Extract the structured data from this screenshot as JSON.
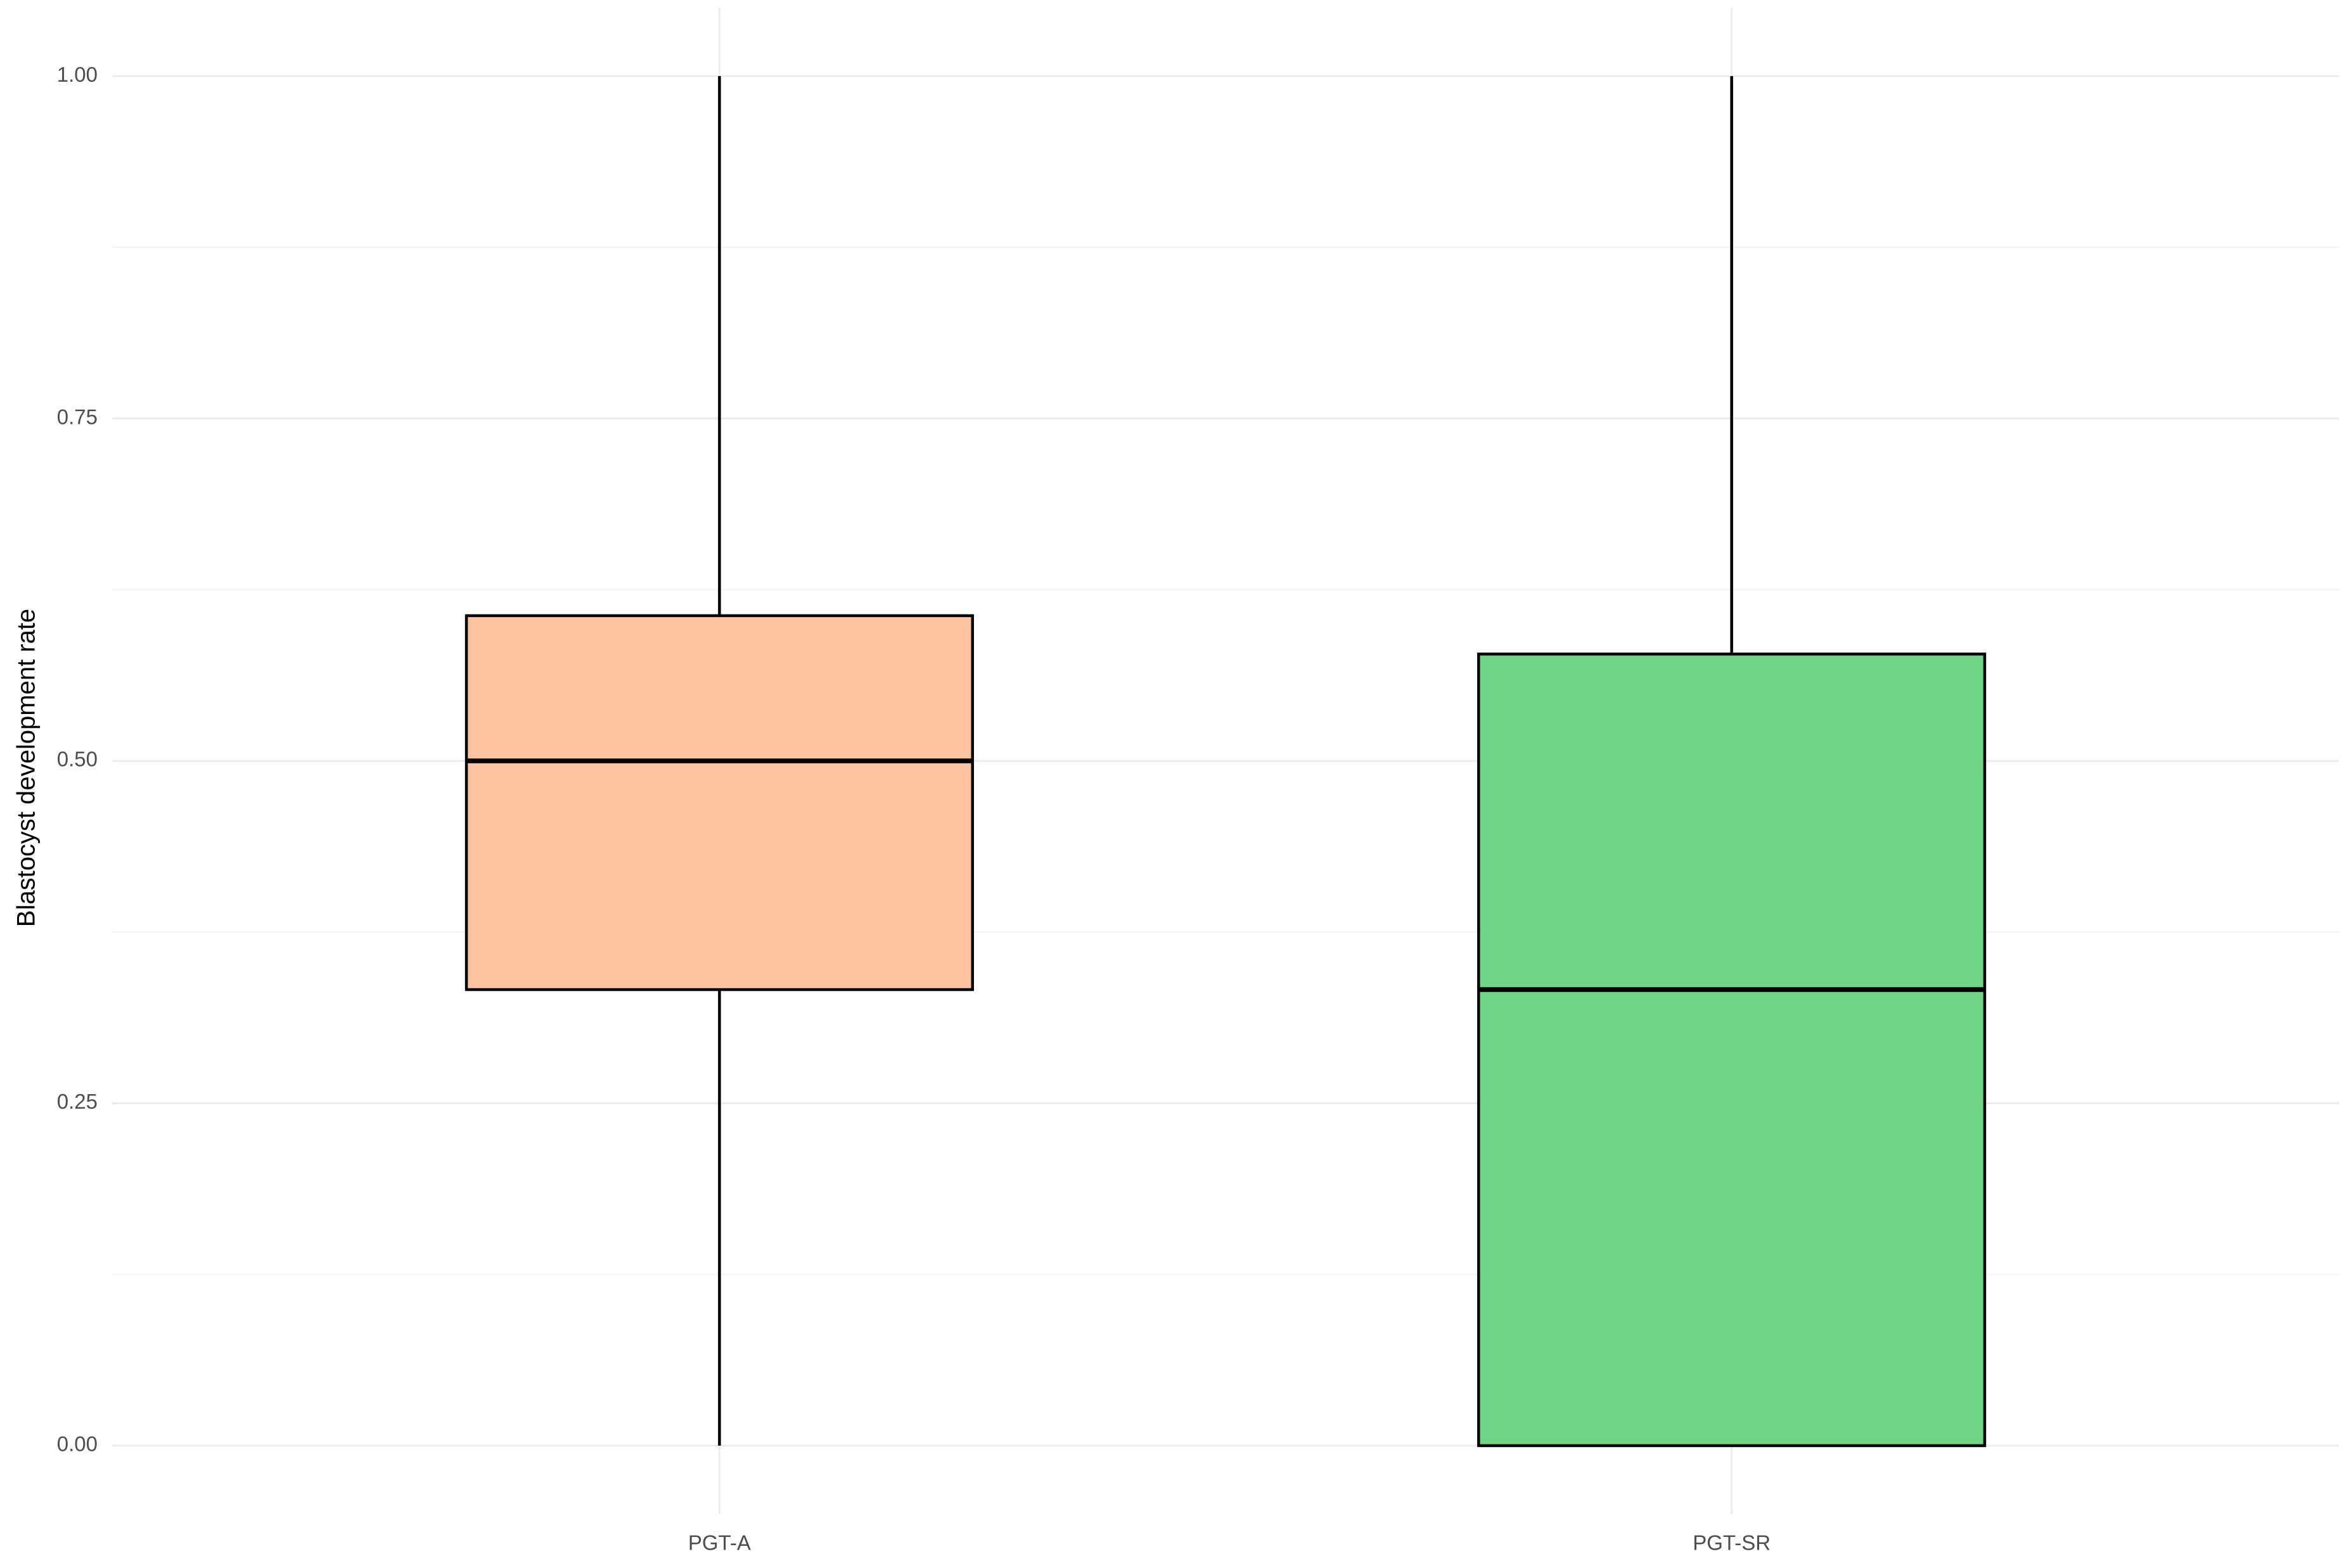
{
  "chart_data": {
    "type": "boxplot",
    "y_label": "Blastocyst development rate",
    "categories": [
      "PGT-A",
      "PGT-SR"
    ],
    "boxes": [
      {
        "min": 0,
        "q1": 0.333,
        "median": 0.5,
        "q3": 0.606,
        "max": 1,
        "color": "#fdc3a0"
      },
      {
        "min": 0,
        "q1": 0,
        "median": 0.333,
        "q3": 0.578,
        "max": 1,
        "color": "#70d487"
      }
    ],
    "ylim": [
      -0.05,
      1.05
    ],
    "yticks": [
      {
        "value": 0,
        "label": "0.00"
      },
      {
        "value": 0.25,
        "label": "0.25"
      },
      {
        "value": 0.5,
        "label": "0.50"
      },
      {
        "value": 0.75,
        "label": "0.75"
      },
      {
        "value": 1,
        "label": "1.00"
      }
    ],
    "minor_yticks": [
      0.125,
      0.375,
      0.625,
      0.875
    ],
    "grid": true
  }
}
